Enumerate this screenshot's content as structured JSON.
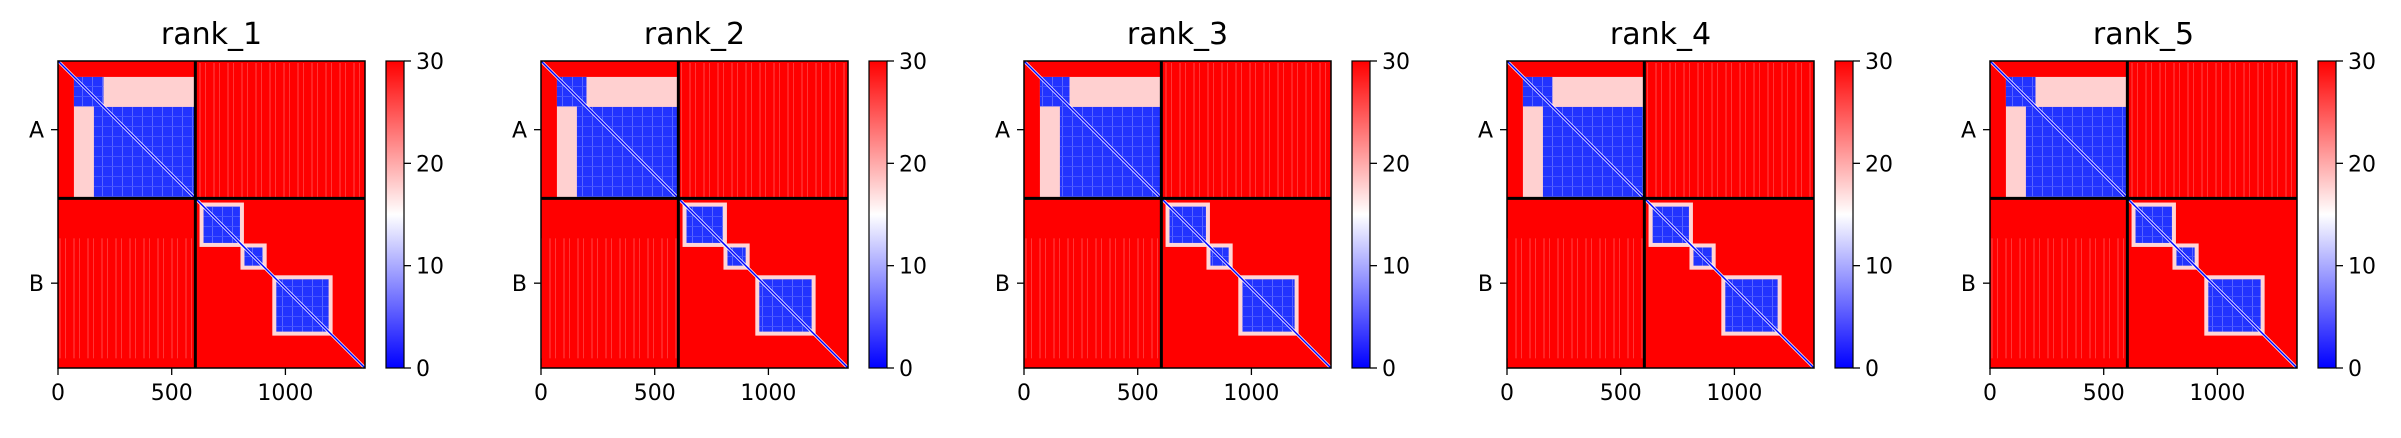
{
  "chart_data": [
    {
      "type": "heatmap",
      "title": "rank_1",
      "x_range": [
        0,
        1350
      ],
      "xticks": [
        0,
        500,
        1000
      ],
      "yticks": [
        "A",
        "B"
      ],
      "chain_boundary": 604,
      "colorbar": {
        "min": 0,
        "max": 30,
        "ticks": [
          0,
          10,
          20,
          30
        ],
        "colormap": [
          "#0000ff",
          "#ffffff",
          "#ff0000"
        ]
      },
      "low_error_blocks": [
        [
          [
            70,
            200
          ],
          [
            200,
            600
          ]
        ],
        [
          [
            640,
            800
          ],
          [
            820,
            900
          ],
          [
            960,
            1190
          ]
        ]
      ]
    },
    {
      "type": "heatmap",
      "title": "rank_2",
      "x_range": [
        0,
        1350
      ],
      "xticks": [
        0,
        500,
        1000
      ],
      "yticks": [
        "A",
        "B"
      ],
      "chain_boundary": 604,
      "colorbar": {
        "min": 0,
        "max": 30,
        "ticks": [
          0,
          10,
          20,
          30
        ],
        "colormap": [
          "#0000ff",
          "#ffffff",
          "#ff0000"
        ]
      },
      "low_error_blocks": [
        [
          [
            70,
            200
          ],
          [
            200,
            600
          ]
        ],
        [
          [
            640,
            800
          ],
          [
            820,
            900
          ],
          [
            960,
            1190
          ]
        ]
      ]
    },
    {
      "type": "heatmap",
      "title": "rank_3",
      "x_range": [
        0,
        1350
      ],
      "xticks": [
        0,
        500,
        1000
      ],
      "yticks": [
        "A",
        "B"
      ],
      "chain_boundary": 604,
      "colorbar": {
        "min": 0,
        "max": 30,
        "ticks": [
          0,
          10,
          20,
          30
        ],
        "colormap": [
          "#0000ff",
          "#ffffff",
          "#ff0000"
        ]
      },
      "low_error_blocks": [
        [
          [
            70,
            200
          ],
          [
            200,
            600
          ]
        ],
        [
          [
            640,
            800
          ],
          [
            820,
            900
          ],
          [
            960,
            1190
          ]
        ]
      ]
    },
    {
      "type": "heatmap",
      "title": "rank_4",
      "x_range": [
        0,
        1350
      ],
      "xticks": [
        0,
        500,
        1000
      ],
      "yticks": [
        "A",
        "B"
      ],
      "chain_boundary": 604,
      "colorbar": {
        "min": 0,
        "max": 30,
        "ticks": [
          0,
          10,
          20,
          30
        ],
        "colormap": [
          "#0000ff",
          "#ffffff",
          "#ff0000"
        ]
      },
      "low_error_blocks": [
        [
          [
            70,
            200
          ],
          [
            200,
            600
          ]
        ],
        [
          [
            640,
            800
          ],
          [
            820,
            900
          ],
          [
            960,
            1190
          ]
        ]
      ]
    },
    {
      "type": "heatmap",
      "title": "rank_5",
      "x_range": [
        0,
        1350
      ],
      "xticks": [
        0,
        500,
        1000
      ],
      "yticks": [
        "A",
        "B"
      ],
      "chain_boundary": 604,
      "colorbar": {
        "min": 0,
        "max": 30,
        "ticks": [
          0,
          10,
          20,
          30
        ],
        "colormap": [
          "#0000ff",
          "#ffffff",
          "#ff0000"
        ]
      },
      "low_error_blocks": [
        [
          [
            70,
            200
          ],
          [
            200,
            600
          ]
        ],
        [
          [
            640,
            800
          ],
          [
            820,
            900
          ],
          [
            960,
            1190
          ]
        ]
      ]
    }
  ]
}
